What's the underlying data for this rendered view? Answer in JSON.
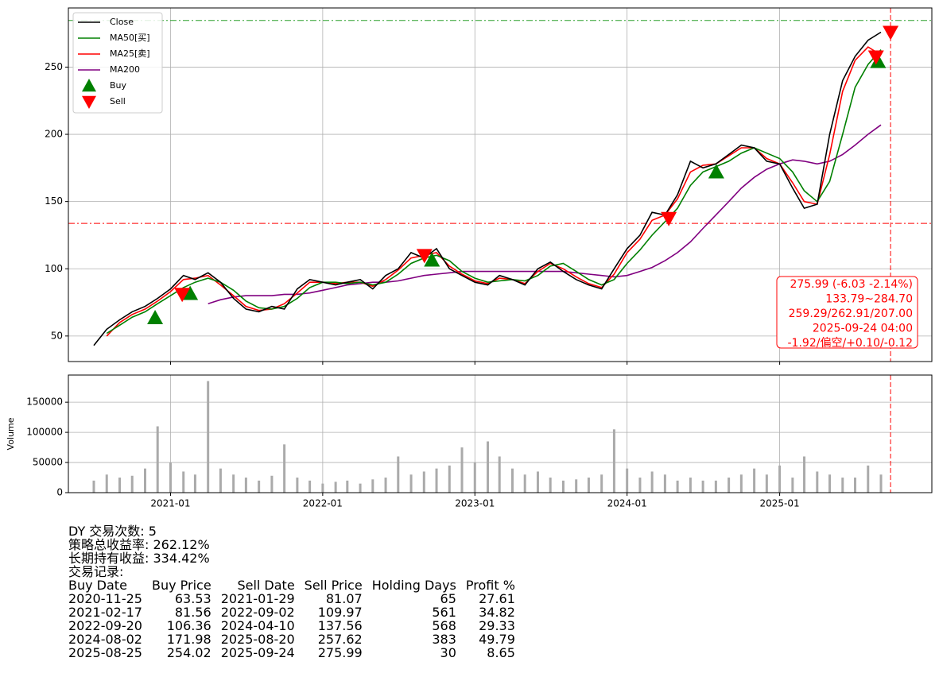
{
  "chart_data": {
    "type": "line",
    "x": [
      "2020-07",
      "2020-08",
      "2020-09",
      "2020-10",
      "2020-11",
      "2020-12",
      "2021-01",
      "2021-02",
      "2021-03",
      "2021-04",
      "2021-05",
      "2021-06",
      "2021-07",
      "2021-08",
      "2021-09",
      "2021-10",
      "2021-11",
      "2021-12",
      "2022-01",
      "2022-02",
      "2022-03",
      "2022-04",
      "2022-05",
      "2022-06",
      "2022-07",
      "2022-08",
      "2022-09",
      "2022-10",
      "2022-11",
      "2022-12",
      "2023-01",
      "2023-02",
      "2023-03",
      "2023-04",
      "2023-05",
      "2023-06",
      "2023-07",
      "2023-08",
      "2023-09",
      "2023-10",
      "2023-11",
      "2023-12",
      "2024-01",
      "2024-02",
      "2024-03",
      "2024-04",
      "2024-05",
      "2024-06",
      "2024-07",
      "2024-08",
      "2024-09",
      "2024-10",
      "2024-11",
      "2024-12",
      "2025-01",
      "2025-02",
      "2025-03",
      "2025-04",
      "2025-05",
      "2025-06",
      "2025-07",
      "2025-08",
      "2025-09"
    ],
    "series": [
      {
        "name": "Close",
        "color": "#000000",
        "values": [
          43,
          55,
          62,
          68,
          72,
          78,
          85,
          95,
          92,
          97,
          90,
          78,
          70,
          68,
          72,
          70,
          85,
          92,
          90,
          88,
          90,
          92,
          85,
          95,
          100,
          112,
          108,
          115,
          100,
          95,
          90,
          88,
          95,
          92,
          88,
          100,
          105,
          98,
          92,
          88,
          85,
          100,
          115,
          125,
          142,
          140,
          155,
          180,
          175,
          178,
          185,
          192,
          190,
          180,
          178,
          160,
          145,
          148,
          200,
          240,
          258,
          270,
          276
        ]
      },
      {
        "name": "MA50[买]",
        "color": "#008000",
        "values": [
          null,
          52,
          58,
          64,
          68,
          74,
          80,
          86,
          90,
          93,
          90,
          84,
          76,
          71,
          70,
          72,
          78,
          86,
          90,
          90,
          89,
          90,
          88,
          90,
          96,
          104,
          108,
          110,
          106,
          98,
          93,
          90,
          91,
          92,
          91,
          95,
          102,
          104,
          98,
          92,
          88,
          92,
          104,
          114,
          125,
          135,
          145,
          162,
          172,
          176,
          180,
          186,
          190,
          186,
          182,
          172,
          158,
          150,
          165,
          200,
          235,
          252,
          263
        ]
      },
      {
        "name": "MA25[卖]",
        "color": "#ff0000",
        "values": [
          null,
          50,
          60,
          66,
          70,
          76,
          83,
          92,
          93,
          95,
          88,
          80,
          72,
          69,
          70,
          74,
          82,
          90,
          90,
          89,
          90,
          90,
          87,
          92,
          99,
          108,
          110,
          112,
          102,
          96,
          91,
          89,
          93,
          92,
          89,
          98,
          104,
          100,
          94,
          89,
          86,
          96,
          112,
          122,
          136,
          140,
          152,
          172,
          177,
          178,
          184,
          190,
          190,
          182,
          178,
          164,
          150,
          148,
          185,
          232,
          255,
          265,
          259
        ]
      },
      {
        "name": "MA200",
        "color": "#800080",
        "values": [
          null,
          null,
          null,
          null,
          null,
          null,
          null,
          null,
          null,
          74,
          77,
          79,
          80,
          80,
          80,
          81,
          81,
          82,
          84,
          86,
          88,
          89,
          90,
          90,
          91,
          93,
          95,
          96,
          97,
          98,
          98,
          98,
          98,
          98,
          98,
          98,
          98,
          98,
          97,
          96,
          95,
          94,
          95,
          98,
          101,
          106,
          112,
          120,
          130,
          140,
          150,
          160,
          168,
          174,
          178,
          181,
          180,
          178,
          180,
          185,
          192,
          200,
          207
        ]
      }
    ],
    "markers": [
      {
        "name": "Buy",
        "color": "#008000",
        "shape": "up",
        "x": [
          "2020-11-25",
          "2021-02-17",
          "2022-09-20",
          "2024-08-02",
          "2025-08-25"
        ],
        "values": [
          63.53,
          81.56,
          106.36,
          171.98,
          254.02
        ]
      },
      {
        "name": "Sell",
        "color": "#ff0000",
        "shape": "down",
        "x": [
          "2021-01-29",
          "2022-09-02",
          "2024-04-10",
          "2025-08-20",
          "2025-09-24"
        ],
        "values": [
          81.07,
          109.97,
          137.56,
          257.62,
          275.99
        ]
      }
    ],
    "hlines": [
      {
        "value": 284.7,
        "color": "#2ca02c"
      },
      {
        "value": 133.79,
        "color": "#ff0000"
      }
    ],
    "vline": {
      "x": "2025-09-24",
      "color": "#ff0000"
    },
    "annotation": [
      "275.99 (-6.03 -2.14%)",
      "133.79~284.70",
      "259.29/262.91/207.00",
      "2025-09-24 04:00",
      "-1.92/偏空/+0.10/-0.12"
    ],
    "xlim": [
      "2020-05",
      "2026-01"
    ],
    "xticks": [
      "2021-01",
      "2022-01",
      "2023-01",
      "2024-01",
      "2025-01"
    ],
    "ylim": [
      31,
      294
    ],
    "yticks": [
      50,
      100,
      150,
      200,
      250
    ],
    "grid": true,
    "legend": "upper left",
    "volume": {
      "label": "Volume",
      "color": "#aaaaaa",
      "values": [
        20000,
        30000,
        25000,
        28000,
        40000,
        110000,
        50000,
        35000,
        30000,
        185000,
        40000,
        30000,
        25000,
        20000,
        28000,
        80000,
        25000,
        20000,
        15000,
        18000,
        20000,
        15000,
        22000,
        25000,
        60000,
        30000,
        35000,
        40000,
        45000,
        75000,
        50000,
        85000,
        60000,
        40000,
        30000,
        35000,
        25000,
        20000,
        22000,
        25000,
        30000,
        105000,
        40000,
        25000,
        35000,
        30000,
        20000,
        25000,
        20000,
        20000,
        25000,
        30000,
        40000,
        30000,
        45000,
        25000,
        60000,
        35000,
        30000,
        25000,
        25000,
        45000,
        30000
      ],
      "ylim": [
        0,
        195000
      ],
      "yticks": [
        0,
        50000,
        100000,
        150000
      ]
    }
  },
  "report": {
    "summary": [
      "DY 交易次数: 5",
      "策略总收益率: 262.12%",
      "长期持有收益: 334.42%",
      "交易记录:"
    ],
    "columns": [
      "Buy Date",
      "Buy Price",
      "Sell Date",
      "Sell Price",
      "Holding Days",
      "Profit %"
    ],
    "rows": [
      [
        "2020-11-25",
        63.53,
        "2021-01-29",
        81.07,
        65,
        27.61
      ],
      [
        "2021-02-17",
        81.56,
        "2022-09-02",
        109.97,
        561,
        34.82
      ],
      [
        "2022-09-20",
        106.36,
        "2024-04-10",
        137.56,
        568,
        29.33
      ],
      [
        "2024-08-02",
        171.98,
        "2025-08-20",
        257.62,
        383,
        49.79
      ],
      [
        "2025-08-25",
        254.02,
        "2025-09-24",
        275.99,
        30,
        8.65
      ]
    ]
  }
}
